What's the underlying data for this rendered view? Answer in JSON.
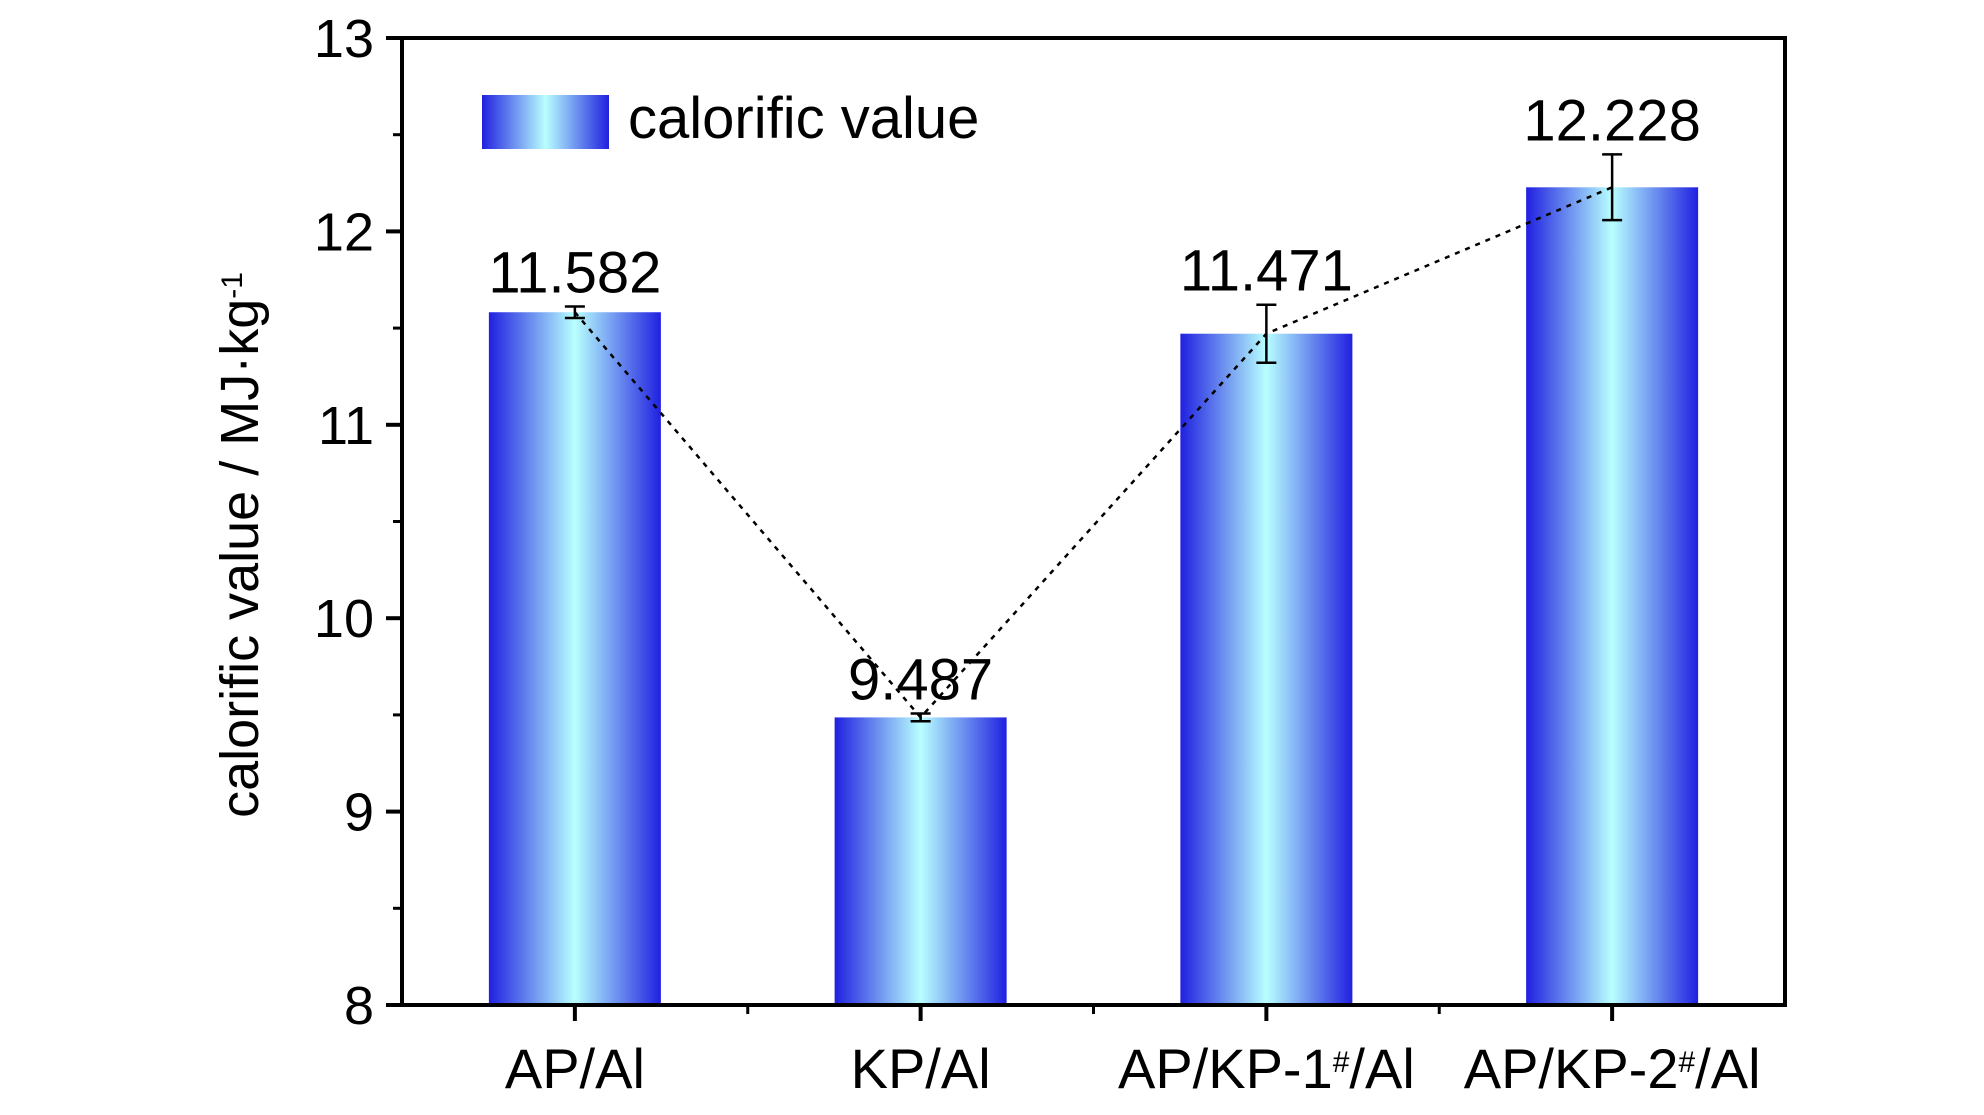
{
  "chart_data": {
    "type": "bar",
    "categories": [
      "AP/Al",
      "KP/Al",
      "AP/KP-1#/Al",
      "AP/KP-2#/Al"
    ],
    "category_parts": [
      {
        "base": "AP/Al",
        "sup": "",
        "tail": ""
      },
      {
        "base": "KP/Al",
        "sup": "",
        "tail": ""
      },
      {
        "base": "AP/KP-1",
        "sup": "#",
        "tail": "/Al"
      },
      {
        "base": "AP/KP-2",
        "sup": "#",
        "tail": "/Al"
      }
    ],
    "series": [
      {
        "name": "calorific value",
        "values": [
          11.582,
          9.487,
          11.471,
          12.228
        ],
        "value_labels": [
          "11.582",
          "9.487",
          "11.471",
          "12.228"
        ],
        "errors": [
          0.03,
          0.02,
          0.15,
          0.17
        ]
      }
    ],
    "connector_line": "dotted",
    "ylabel": {
      "text": "calorific value / MJ·kg",
      "sup": "-1"
    },
    "xlabel": "",
    "ylim": [
      8,
      13
    ],
    "yticks": [
      "8",
      "9",
      "10",
      "11",
      "12",
      "13"
    ],
    "grid": false,
    "legend_position": "top-left",
    "colors": {
      "bar_edge": "#2020e0",
      "bar_center": "#b8ffff",
      "axis": "#000000"
    }
  }
}
